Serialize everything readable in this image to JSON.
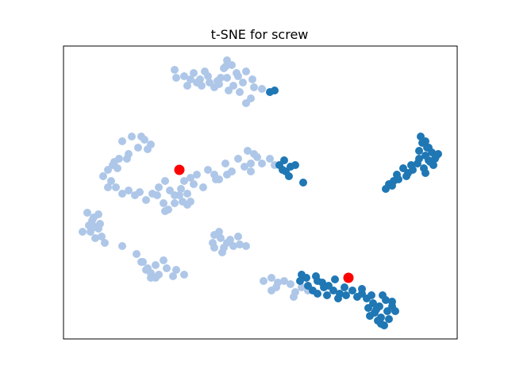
{
  "chart_data": {
    "type": "scatter",
    "title": "t-SNE for screw",
    "xlabel": "",
    "ylabel": "",
    "axes_ticks": "hidden",
    "grid": false,
    "colors": {
      "light": "#aec7e8",
      "dark": "#1f77b4",
      "highlight": "#ff0000",
      "frame": "#000000"
    },
    "series": [
      {
        "color_key": "light",
        "points": [
          [
            220,
            88
          ],
          [
            232,
            96
          ],
          [
            244,
            92
          ],
          [
            252,
            100
          ],
          [
            262,
            96
          ],
          [
            276,
            106
          ],
          [
            286,
            98
          ],
          [
            298,
            92
          ],
          [
            306,
            104
          ],
          [
            318,
            100
          ],
          [
            330,
            112
          ],
          [
            240,
            100
          ],
          [
            258,
            90
          ],
          [
            270,
            110
          ],
          [
            282,
            86
          ],
          [
            294,
            108
          ],
          [
            302,
            116
          ],
          [
            316,
            124
          ],
          [
            286,
            76
          ],
          [
            292,
            82
          ],
          [
            300,
            96
          ],
          [
            310,
            90
          ],
          [
            222,
            98
          ],
          [
            236,
            108
          ],
          [
            248,
            104
          ],
          [
            264,
            104
          ],
          [
            278,
            98
          ],
          [
            320,
            110
          ],
          [
            310,
            130
          ],
          [
            288,
            114
          ],
          [
            254,
            108
          ],
          [
            284,
            84
          ],
          [
            274,
            102
          ],
          [
            166,
            172
          ],
          [
            174,
            186
          ],
          [
            182,
            176
          ],
          [
            190,
            182
          ],
          [
            154,
            178
          ],
          [
            162,
            194
          ],
          [
            150,
            200
          ],
          [
            142,
            208
          ],
          [
            136,
            214
          ],
          [
            130,
            222
          ],
          [
            144,
            204
          ],
          [
            186,
            188
          ],
          [
            178,
            172
          ],
          [
            160,
            200
          ],
          [
            148,
            212
          ],
          [
            140,
            228
          ],
          [
            136,
            236
          ],
          [
            146,
            236
          ],
          [
            154,
            244
          ],
          [
            162,
            240
          ],
          [
            170,
            246
          ],
          [
            176,
            242
          ],
          [
            184,
            252
          ],
          [
            192,
            244
          ],
          [
            200,
            236
          ],
          [
            208,
            228
          ],
          [
            214,
            240
          ],
          [
            220,
            246
          ],
          [
            228,
            238
          ],
          [
            236,
            244
          ],
          [
            244,
            232
          ],
          [
            240,
            254
          ],
          [
            248,
            220
          ],
          [
            256,
            236
          ],
          [
            262,
            214
          ],
          [
            270,
            220
          ],
          [
            276,
            226
          ],
          [
            284,
            206
          ],
          [
            292,
            216
          ],
          [
            300,
            200
          ],
          [
            308,
            210
          ],
          [
            316,
            206
          ],
          [
            316,
            216
          ],
          [
            324,
            198
          ],
          [
            330,
            206
          ],
          [
            340,
            200
          ],
          [
            346,
            208
          ],
          [
            312,
            190
          ],
          [
            320,
            194
          ],
          [
            198,
            246
          ],
          [
            206,
            256
          ],
          [
            212,
            264
          ],
          [
            220,
            256
          ],
          [
            230,
            254
          ],
          [
            236,
            258
          ],
          [
            208,
            266
          ],
          [
            226,
            246
          ],
          [
            232,
            228
          ],
          [
            240,
            224
          ],
          [
            272,
            226
          ],
          [
            286,
            220
          ],
          [
            110,
            268
          ],
          [
            118,
            274
          ],
          [
            124,
            270
          ],
          [
            126,
            282
          ],
          [
            120,
            286
          ],
          [
            114,
            292
          ],
          [
            104,
            292
          ],
          [
            128,
            298
          ],
          [
            132,
            306
          ],
          [
            120,
            300
          ],
          [
            116,
            278
          ],
          [
            124,
            288
          ],
          [
            112,
            284
          ],
          [
            154,
            310
          ],
          [
            172,
            320
          ],
          [
            180,
            330
          ],
          [
            186,
            338
          ],
          [
            190,
            344
          ],
          [
            196,
            334
          ],
          [
            206,
            328
          ],
          [
            210,
            338
          ],
          [
            200,
            346
          ],
          [
            222,
            340
          ],
          [
            232,
            346
          ],
          [
            196,
            350
          ],
          [
            190,
            350
          ],
          [
            184,
            340
          ],
          [
            178,
            330
          ],
          [
            218,
            348
          ],
          [
            270,
            296
          ],
          [
            278,
            300
          ],
          [
            286,
            306
          ],
          [
            294,
            310
          ],
          [
            302,
            308
          ],
          [
            310,
            310
          ],
          [
            268,
            306
          ],
          [
            280,
            318
          ],
          [
            290,
            302
          ],
          [
            300,
            298
          ],
          [
            276,
            292
          ],
          [
            282,
            312
          ],
          [
            270,
            312
          ],
          [
            332,
            354
          ],
          [
            342,
            366
          ],
          [
            350,
            356
          ],
          [
            358,
            354
          ],
          [
            366,
            358
          ],
          [
            372,
            368
          ],
          [
            380,
            362
          ],
          [
            388,
            366
          ],
          [
            348,
            362
          ],
          [
            370,
            374
          ],
          [
            342,
            350
          ]
        ]
      },
      {
        "color_key": "dark",
        "points": [
          [
            340,
            116
          ],
          [
            346,
            114
          ],
          [
            352,
            208
          ],
          [
            358,
            202
          ],
          [
            366,
            210
          ],
          [
            372,
            208
          ],
          [
            360,
            216
          ],
          [
            364,
            222
          ],
          [
            356,
            214
          ],
          [
            382,
            230
          ],
          [
            530,
            172
          ],
          [
            536,
            178
          ],
          [
            540,
            186
          ],
          [
            544,
            192
          ],
          [
            550,
            196
          ],
          [
            528,
            190
          ],
          [
            536,
            196
          ],
          [
            540,
            202
          ],
          [
            546,
            208
          ],
          [
            534,
            212
          ],
          [
            526,
            206
          ],
          [
            520,
            214
          ],
          [
            514,
            218
          ],
          [
            508,
            212
          ],
          [
            500,
            220
          ],
          [
            496,
            228
          ],
          [
            490,
            232
          ],
          [
            486,
            238
          ],
          [
            494,
            234
          ],
          [
            502,
            226
          ],
          [
            512,
            222
          ],
          [
            518,
            208
          ],
          [
            528,
            200
          ],
          [
            536,
            218
          ],
          [
            542,
            204
          ],
          [
            548,
            200
          ],
          [
            552,
            194
          ],
          [
            538,
            186
          ],
          [
            532,
            180
          ],
          [
            378,
            354
          ],
          [
            388,
            360
          ],
          [
            394,
            366
          ],
          [
            400,
            370
          ],
          [
            406,
            356
          ],
          [
            414,
            360
          ],
          [
            420,
            366
          ],
          [
            428,
            370
          ],
          [
            434,
            362
          ],
          [
            444,
            366
          ],
          [
            450,
            374
          ],
          [
            456,
            370
          ],
          [
            462,
            376
          ],
          [
            470,
            382
          ],
          [
            478,
            386
          ],
          [
            486,
            378
          ],
          [
            494,
            380
          ],
          [
            488,
            392
          ],
          [
            480,
            400
          ],
          [
            472,
            394
          ],
          [
            464,
            388
          ],
          [
            476,
            404
          ],
          [
            484,
            410
          ],
          [
            490,
            402
          ],
          [
            380,
            346
          ],
          [
            386,
            350
          ],
          [
            398,
            348
          ],
          [
            408,
            362
          ],
          [
            422,
            352
          ],
          [
            436,
            372
          ],
          [
            426,
            376
          ],
          [
            468,
            372
          ],
          [
            482,
            372
          ],
          [
            494,
            386
          ],
          [
            498,
            392
          ],
          [
            474,
            390
          ],
          [
            412,
            372
          ],
          [
            400,
            354
          ],
          [
            456,
            364
          ],
          [
            466,
            398
          ],
          [
            480,
            408
          ]
        ]
      },
      {
        "color_key": "highlight",
        "points": [
          [
            226,
            214
          ],
          [
            439,
            350
          ]
        ]
      }
    ]
  }
}
